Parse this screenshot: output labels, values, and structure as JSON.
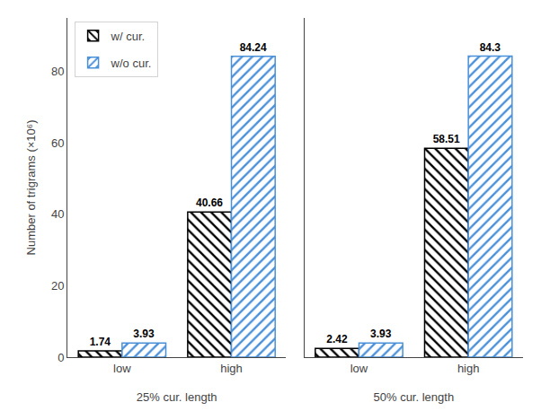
{
  "chart_data": [
    {
      "type": "bar",
      "xlabel": "25% cur. length",
      "ylabel": "Number of trigrams (×10⁶)",
      "categories": [
        "low",
        "high"
      ],
      "series": [
        {
          "name": "w/ cur.",
          "color": "black",
          "values": [
            1.74,
            40.66
          ]
        },
        {
          "name": "w/o cur.",
          "color": "#4a90d9",
          "values": [
            3.93,
            84.24
          ]
        }
      ],
      "ylim": [
        0,
        95
      ],
      "yticks": [
        0,
        20,
        40,
        60,
        80
      ],
      "data_labels": true,
      "legend": "upper left",
      "grid": false
    },
    {
      "type": "bar",
      "xlabel": "50% cur. length",
      "categories": [
        "low",
        "high"
      ],
      "series": [
        {
          "name": "w/ cur.",
          "color": "black",
          "values": [
            2.42,
            58.51
          ]
        },
        {
          "name": "w/o cur.",
          "color": "#4a90d9",
          "values": [
            3.93,
            84.3
          ]
        }
      ],
      "ylim": [
        0,
        95
      ],
      "yticks": [
        0,
        20,
        40,
        60,
        80
      ],
      "data_labels": true,
      "tick_labels": "x",
      "grid": false
    }
  ]
}
